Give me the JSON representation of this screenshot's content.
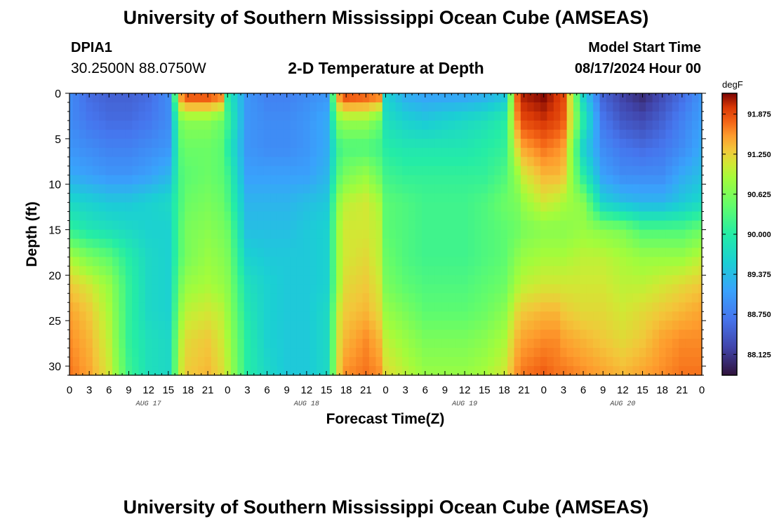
{
  "header": {
    "title": "University of Southern Mississippi Ocean Cube (AMSEAS)",
    "station_id": "DPIA1",
    "station_coords": "30.2500N  88.0750W",
    "subtitle": "2-D Temperature at Depth",
    "model_start_label": "Model Start Time",
    "model_start_value": "08/17/2024 Hour 00"
  },
  "footer": {
    "title": "University of Southern Mississippi Ocean Cube (AMSEAS)"
  },
  "chart_data": {
    "type": "heatmap",
    "title": "2-D Temperature at Depth",
    "xlabel": "Forecast Time(Z)",
    "ylabel": "Depth (ft)",
    "xlim": [
      0,
      96
    ],
    "ylim": [
      0,
      31
    ],
    "x_ticks": [
      0,
      3,
      6,
      9,
      12,
      15,
      18,
      21,
      24,
      27,
      30,
      33,
      36,
      39,
      42,
      45,
      48,
      51,
      54,
      57,
      60,
      63,
      66,
      69,
      72,
      75,
      78,
      81,
      84,
      87,
      90,
      93,
      96
    ],
    "x_tick_labels": [
      "0",
      "3",
      "6",
      "9",
      "12",
      "15",
      "18",
      "21",
      "0",
      "3",
      "6",
      "9",
      "12",
      "15",
      "18",
      "21",
      "0",
      "3",
      "6",
      "9",
      "12",
      "15",
      "18",
      "21",
      "0",
      "3",
      "6",
      "9",
      "12",
      "15",
      "18",
      "21",
      "0"
    ],
    "date_labels": [
      {
        "x": 12,
        "label": "AUG 17"
      },
      {
        "x": 36,
        "label": "AUG 18"
      },
      {
        "x": 60,
        "label": "AUG 19"
      },
      {
        "x": 84,
        "label": "AUG 20"
      }
    ],
    "y_ticks": [
      0,
      5,
      10,
      15,
      20,
      25,
      30
    ],
    "y_tick_labels": [
      "0",
      "5",
      "10",
      "15",
      "20",
      "25",
      "30"
    ],
    "colorbar": {
      "unit": "degF",
      "min": 87.8,
      "max": 92.2,
      "ticks": [
        91.875,
        91.25,
        90.625,
        90.0,
        89.375,
        88.75,
        88.125
      ],
      "tick_labels": [
        "91.875",
        "91.250",
        "90.625",
        "90.000",
        "89.375",
        "88.750",
        "88.125"
      ]
    },
    "x": [
      0,
      3,
      6,
      9,
      12,
      15,
      17,
      18,
      21,
      23,
      24,
      27,
      30,
      33,
      36,
      39,
      41,
      42,
      45,
      47,
      48,
      51,
      54,
      57,
      60,
      63,
      66,
      68,
      69,
      72,
      74,
      75,
      78,
      81,
      84,
      87,
      90,
      93,
      96
    ],
    "depth": [
      0,
      3,
      6,
      9,
      12,
      15,
      18,
      21,
      24,
      27,
      31
    ],
    "values": [
      [
        88.9,
        88.6,
        88.5,
        88.5,
        88.6,
        88.9,
        91.7,
        92.0,
        92.0,
        91.8,
        90.0,
        89.0,
        88.8,
        88.8,
        88.9,
        89.0,
        91.7,
        92.0,
        91.9,
        91.8,
        89.6,
        89.2,
        89.1,
        89.1,
        89.1,
        89.2,
        89.4,
        91.8,
        92.1,
        92.2,
        92.0,
        91.9,
        89.6,
        88.5,
        88.2,
        88.0,
        88.3,
        88.6,
        89.0
      ],
      [
        88.9,
        88.7,
        88.6,
        88.6,
        88.7,
        88.9,
        90.6,
        90.7,
        90.7,
        90.5,
        90.2,
        89.0,
        88.9,
        88.9,
        89.0,
        89.2,
        90.7,
        90.8,
        90.8,
        90.5,
        89.8,
        89.6,
        89.5,
        89.6,
        89.7,
        89.8,
        90.0,
        91.6,
        91.9,
        92.0,
        91.9,
        91.8,
        90.0,
        88.7,
        88.4,
        88.3,
        88.5,
        88.8,
        89.1
      ],
      [
        89.0,
        88.9,
        88.8,
        88.8,
        88.9,
        89.0,
        90.4,
        90.5,
        90.5,
        90.4,
        90.0,
        89.0,
        88.9,
        88.9,
        89.0,
        89.2,
        90.2,
        90.3,
        90.3,
        90.2,
        90.0,
        89.9,
        89.9,
        89.9,
        89.9,
        90.0,
        90.1,
        91.2,
        91.5,
        91.7,
        91.6,
        91.5,
        89.6,
        88.9,
        88.7,
        88.6,
        88.7,
        88.9,
        89.2
      ],
      [
        89.2,
        89.1,
        89.0,
        89.0,
        89.1,
        89.3,
        90.3,
        90.4,
        90.5,
        90.4,
        90.2,
        89.1,
        89.1,
        89.1,
        89.1,
        89.3,
        90.4,
        90.6,
        90.8,
        90.5,
        90.2,
        90.1,
        90.1,
        90.1,
        90.1,
        90.1,
        90.3,
        90.8,
        91.1,
        91.4,
        91.4,
        91.3,
        90.0,
        89.1,
        88.9,
        88.9,
        88.9,
        89.2,
        89.4
      ],
      [
        89.7,
        89.6,
        89.5,
        89.5,
        89.6,
        89.7,
        90.3,
        90.5,
        90.6,
        90.5,
        90.3,
        89.3,
        89.3,
        89.3,
        89.4,
        89.5,
        90.8,
        91.0,
        91.1,
        90.9,
        90.4,
        90.3,
        90.2,
        90.2,
        90.2,
        90.3,
        90.5,
        90.6,
        90.8,
        91.1,
        91.0,
        90.9,
        90.7,
        89.6,
        89.4,
        89.3,
        89.3,
        89.5,
        89.7
      ],
      [
        90.1,
        89.9,
        89.8,
        89.7,
        89.6,
        89.6,
        90.4,
        90.6,
        90.7,
        90.6,
        90.5,
        89.4,
        89.4,
        89.4,
        89.5,
        89.6,
        90.9,
        91.1,
        91.1,
        91.0,
        90.4,
        90.3,
        90.2,
        90.2,
        90.2,
        90.3,
        90.4,
        90.5,
        90.6,
        90.7,
        90.7,
        90.7,
        90.8,
        90.7,
        90.6,
        90.3,
        90.3,
        90.3,
        90.5
      ],
      [
        90.9,
        90.6,
        90.4,
        90.0,
        89.7,
        89.6,
        90.4,
        90.6,
        90.8,
        90.7,
        90.6,
        89.6,
        89.5,
        89.5,
        89.5,
        89.6,
        90.9,
        91.1,
        91.2,
        91.0,
        90.5,
        90.3,
        90.2,
        90.2,
        90.2,
        90.3,
        90.4,
        90.7,
        90.8,
        90.9,
        90.9,
        90.9,
        91.0,
        91.0,
        90.9,
        90.8,
        90.8,
        90.8,
        91.0
      ],
      [
        91.3,
        91.1,
        90.8,
        90.1,
        89.7,
        89.6,
        90.6,
        90.8,
        90.9,
        90.8,
        90.7,
        89.8,
        89.6,
        89.5,
        89.5,
        89.6,
        90.9,
        91.2,
        91.3,
        91.1,
        90.6,
        90.4,
        90.3,
        90.3,
        90.3,
        90.4,
        90.5,
        90.9,
        91.0,
        91.1,
        91.1,
        91.1,
        91.1,
        91.1,
        91.0,
        91.0,
        91.1,
        91.2,
        91.3
      ],
      [
        91.5,
        91.3,
        90.9,
        90.1,
        89.7,
        89.6,
        90.8,
        91.0,
        91.1,
        91.0,
        90.8,
        89.9,
        89.6,
        89.5,
        89.5,
        89.7,
        91.1,
        91.3,
        91.4,
        91.2,
        90.8,
        90.6,
        90.4,
        90.4,
        90.4,
        90.5,
        90.7,
        91.2,
        91.3,
        91.4,
        91.4,
        91.3,
        91.2,
        91.2,
        91.1,
        91.2,
        91.3,
        91.4,
        91.5
      ],
      [
        91.6,
        91.4,
        91.0,
        90.1,
        89.8,
        89.7,
        91.0,
        91.2,
        91.3,
        91.1,
        90.9,
        90.0,
        89.6,
        89.5,
        89.5,
        89.7,
        91.2,
        91.4,
        91.6,
        91.4,
        91.0,
        90.8,
        90.6,
        90.6,
        90.6,
        90.7,
        90.9,
        91.4,
        91.5,
        91.6,
        91.6,
        91.5,
        91.4,
        91.3,
        91.2,
        91.3,
        91.5,
        91.6,
        91.6
      ],
      [
        91.7,
        91.5,
        91.1,
        90.2,
        89.8,
        89.7,
        91.1,
        91.3,
        91.4,
        91.2,
        91.0,
        90.0,
        89.7,
        89.5,
        89.5,
        89.7,
        91.3,
        91.6,
        91.7,
        91.6,
        91.2,
        91.0,
        90.8,
        90.8,
        90.8,
        90.9,
        91.1,
        91.6,
        91.7,
        91.8,
        91.7,
        91.7,
        91.6,
        91.5,
        91.4,
        91.5,
        91.6,
        91.7,
        91.7
      ]
    ]
  }
}
